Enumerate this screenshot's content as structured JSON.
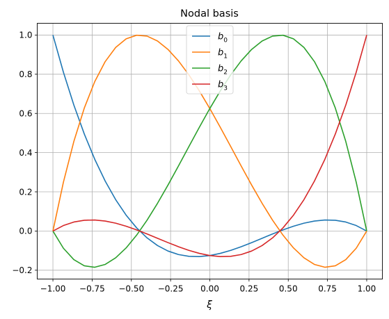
{
  "chart_data": {
    "type": "line",
    "title": "Nodal basis",
    "xlabel": "ξ",
    "ylabel": "",
    "xlim": [
      -1.1,
      1.1
    ],
    "ylim": [
      -0.245,
      1.06
    ],
    "xticks": [
      -1.0,
      -0.75,
      -0.5,
      -0.25,
      0.0,
      0.25,
      0.5,
      0.75,
      1.0
    ],
    "xtick_labels": [
      "−1.00",
      "−0.75",
      "−0.50",
      "−0.25",
      "0.00",
      "0.25",
      "0.50",
      "0.75",
      "1.00"
    ],
    "yticks": [
      -0.2,
      0.0,
      0.2,
      0.4,
      0.6,
      0.8,
      1.0
    ],
    "ytick_labels": [
      "−0.2",
      "0.0",
      "0.2",
      "0.4",
      "0.6",
      "0.8",
      "1.0"
    ],
    "grid": true,
    "legend": "top-center",
    "nodes": [
      -1.0,
      -0.4472,
      0.4472,
      1.0
    ],
    "series": [
      {
        "name": "b",
        "subscript": "0",
        "color": "#1f77b4"
      },
      {
        "name": "b",
        "subscript": "1",
        "color": "#ff7f0e"
      },
      {
        "name": "b",
        "subscript": "2",
        "color": "#2ca02c"
      },
      {
        "name": "b",
        "subscript": "3",
        "color": "#d62728"
      }
    ]
  }
}
